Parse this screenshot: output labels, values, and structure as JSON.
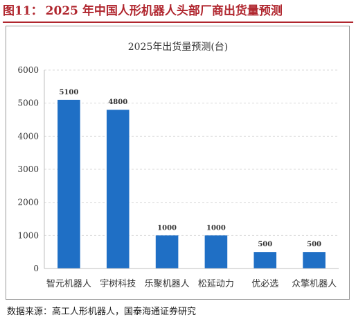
{
  "figure": {
    "label": "图11：",
    "title": "2025 年中国人形机器人头部厂商出货量预测",
    "title_color": "#b0262e"
  },
  "source": "数据来源：高工人形机器人，国泰海通证券研究",
  "chart_data": {
    "type": "bar",
    "title": "2025年出货量预测(台)",
    "categories": [
      "智元机器人",
      "宇树科技",
      "乐聚机器人",
      "松延动力",
      "优必选",
      "众擎机器人"
    ],
    "values": [
      5100,
      4800,
      1000,
      1000,
      500,
      500
    ],
    "data_labels": [
      "5100",
      "4800",
      "1000",
      "1000",
      "500",
      "500"
    ],
    "ylim": [
      0,
      6000
    ],
    "yticks": [
      0,
      1000,
      2000,
      3000,
      4000,
      5000,
      6000
    ],
    "grid": true,
    "bar_color": "#1f6fc5",
    "legend": "none"
  }
}
